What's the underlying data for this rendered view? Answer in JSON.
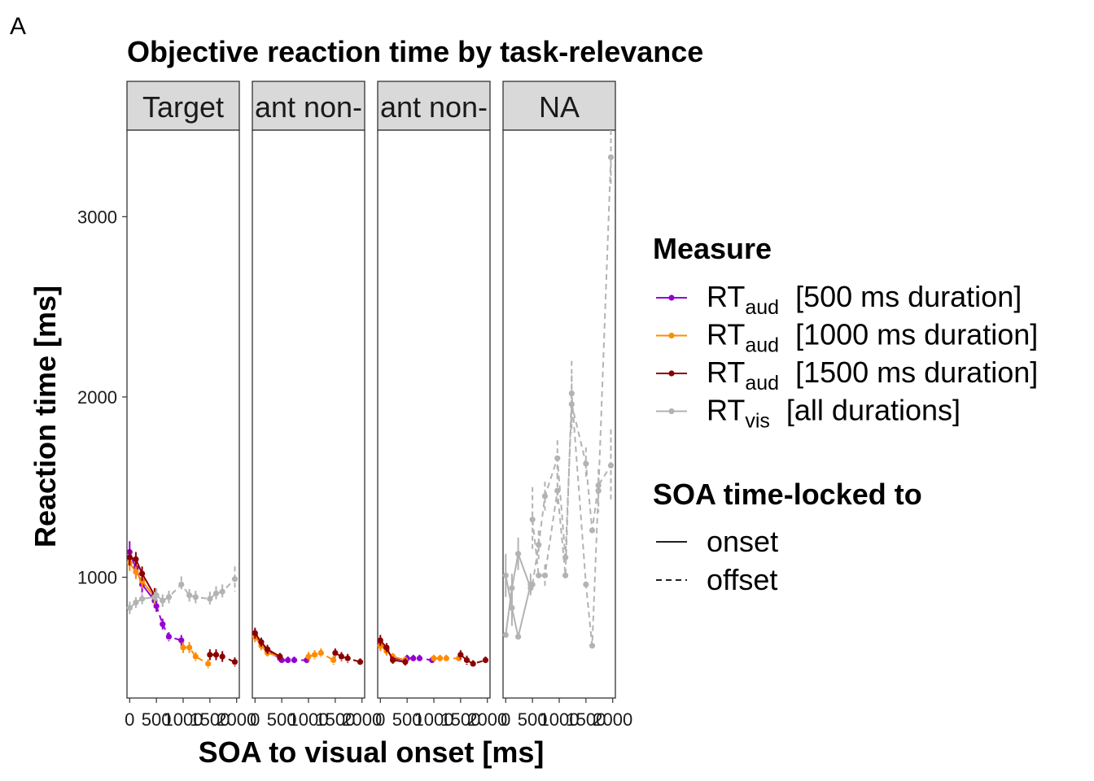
{
  "panel_letter": "A",
  "chart_data": {
    "type": "line",
    "title": "Objective reaction time by task-relevance",
    "xlabel": "SOA to visual onset [ms]",
    "ylabel": "Reaction time [ms]",
    "ylim": [
      330,
      3480
    ],
    "y_ticks": [
      "1000",
      "2000",
      "3000"
    ],
    "xlim": [
      -50,
      2050
    ],
    "x_tick_labels": [
      "0",
      "500",
      "1000",
      "1500",
      "2000"
    ],
    "facets": [
      "Target",
      "ant non-",
      "ant non-",
      "NA"
    ],
    "legend": {
      "placement": "right",
      "measure_title": "Measure",
      "measure_entries": [
        {
          "main": "RT",
          "sub": "aud",
          "rest": "[500 ms duration]",
          "color": "#9400d3"
        },
        {
          "main": "RT",
          "sub": "aud",
          "rest": "[1000 ms duration]",
          "color": "#ff8c00"
        },
        {
          "main": "RT",
          "sub": "aud",
          "rest": "[1500 ms duration]",
          "color": "#8b0000"
        },
        {
          "main": "RT",
          "sub": "vis",
          "rest": "[all durations]",
          "color": "#b3b3b3"
        }
      ],
      "lock_title": "SOA time-locked to",
      "lock_entries": [
        "onset",
        "offset"
      ]
    },
    "series": [
      {
        "panel": 0,
        "color": "#9400d3",
        "dash": false,
        "x": [
          0,
          116,
          233,
          466
        ],
        "y": [
          1140,
          1050,
          960,
          870
        ],
        "err": [
          60,
          50,
          45,
          40
        ]
      },
      {
        "panel": 0,
        "color": "#9400d3",
        "dash": true,
        "x": [
          500,
          616,
          733,
          966
        ],
        "y": [
          840,
          740,
          670,
          650
        ],
        "err": [
          40,
          30,
          25,
          30
        ]
      },
      {
        "panel": 0,
        "color": "#ff8c00",
        "dash": false,
        "x": [
          0,
          116,
          233,
          466
        ],
        "y": [
          1080,
          1030,
          980,
          890
        ],
        "err": [
          45,
          40,
          40,
          40
        ]
      },
      {
        "panel": 0,
        "color": "#ff8c00",
        "dash": true,
        "x": [
          1000,
          1116,
          1233,
          1466
        ],
        "y": [
          610,
          610,
          560,
          520
        ],
        "err": [
          30,
          30,
          25,
          25
        ]
      },
      {
        "panel": 0,
        "color": "#8b0000",
        "dash": false,
        "x": [
          0,
          116,
          233,
          466
        ],
        "y": [
          1110,
          1100,
          1020,
          900
        ],
        "err": [
          45,
          40,
          40,
          40
        ]
      },
      {
        "panel": 0,
        "color": "#8b0000",
        "dash": true,
        "x": [
          1500,
          1616,
          1733,
          1966
        ],
        "y": [
          570,
          570,
          560,
          530
        ],
        "err": [
          30,
          30,
          30,
          25
        ]
      },
      {
        "panel": 0,
        "color": "#b3b3b3",
        "dash": false,
        "x": [
          0,
          116,
          233,
          466
        ],
        "y": [
          830,
          860,
          880,
          890
        ],
        "err": [
          35,
          30,
          30,
          30
        ]
      },
      {
        "panel": 0,
        "color": "#b3b3b3",
        "dash": true,
        "x": [
          500,
          616,
          733,
          966,
          1116,
          1233,
          1500,
          1616,
          1733,
          1966
        ],
        "y": [
          900,
          870,
          890,
          960,
          900,
          890,
          880,
          910,
          920,
          990
        ],
        "err": [
          40,
          35,
          35,
          45,
          35,
          35,
          40,
          40,
          40,
          70
        ]
      },
      {
        "panel": 1,
        "color": "#9400d3",
        "dash": false,
        "x": [
          0,
          116,
          233,
          466
        ],
        "y": [
          680,
          640,
          590,
          550
        ],
        "err": [
          30,
          25,
          25,
          20
        ]
      },
      {
        "panel": 1,
        "color": "#9400d3",
        "dash": true,
        "x": [
          500,
          616,
          733,
          966
        ],
        "y": [
          540,
          540,
          540,
          540
        ],
        "err": [
          20,
          20,
          20,
          20
        ]
      },
      {
        "panel": 1,
        "color": "#ff8c00",
        "dash": false,
        "x": [
          0,
          116,
          233,
          466
        ],
        "y": [
          670,
          620,
          580,
          560
        ],
        "err": [
          30,
          25,
          20,
          20
        ]
      },
      {
        "panel": 1,
        "color": "#ff8c00",
        "dash": true,
        "x": [
          1000,
          1116,
          1233,
          1466
        ],
        "y": [
          560,
          570,
          580,
          540
        ],
        "err": [
          25,
          25,
          25,
          25
        ]
      },
      {
        "panel": 1,
        "color": "#8b0000",
        "dash": false,
        "x": [
          0,
          116,
          233,
          466
        ],
        "y": [
          690,
          640,
          600,
          560
        ],
        "err": [
          30,
          25,
          25,
          20
        ]
      },
      {
        "panel": 1,
        "color": "#8b0000",
        "dash": true,
        "x": [
          1500,
          1616,
          1733,
          1966
        ],
        "y": [
          580,
          560,
          550,
          530
        ],
        "err": [
          25,
          25,
          25,
          20
        ]
      },
      {
        "panel": 2,
        "color": "#9400d3",
        "dash": false,
        "x": [
          0,
          116,
          233,
          466
        ],
        "y": [
          630,
          600,
          550,
          540
        ],
        "err": [
          30,
          25,
          20,
          20
        ]
      },
      {
        "panel": 2,
        "color": "#9400d3",
        "dash": true,
        "x": [
          500,
          616,
          733,
          966
        ],
        "y": [
          550,
          550,
          550,
          540
        ],
        "err": [
          20,
          20,
          20,
          20
        ]
      },
      {
        "panel": 2,
        "color": "#ff8c00",
        "dash": false,
        "x": [
          0,
          116,
          233,
          466
        ],
        "y": [
          620,
          590,
          560,
          540
        ],
        "err": [
          30,
          25,
          20,
          20
        ]
      },
      {
        "panel": 2,
        "color": "#ff8c00",
        "dash": true,
        "x": [
          1000,
          1116,
          1233,
          1466
        ],
        "y": [
          550,
          550,
          550,
          550
        ],
        "err": [
          20,
          20,
          20,
          20
        ]
      },
      {
        "panel": 2,
        "color": "#8b0000",
        "dash": false,
        "x": [
          0,
          116,
          233,
          466
        ],
        "y": [
          650,
          610,
          540,
          530
        ],
        "err": [
          30,
          25,
          20,
          20
        ]
      },
      {
        "panel": 2,
        "color": "#8b0000",
        "dash": true,
        "x": [
          1500,
          1616,
          1733,
          1966
        ],
        "y": [
          570,
          540,
          520,
          540
        ],
        "err": [
          25,
          25,
          20,
          20
        ]
      },
      {
        "panel": 3,
        "color": "#b3b3b3",
        "dash": false,
        "x": [
          0,
          116,
          233,
          466
        ],
        "y": [
          1010,
          830,
          670,
          960
        ],
        "err": [
          120,
          100,
          0,
          60
        ]
      },
      {
        "panel": 3,
        "color": "#b3b3b3",
        "dash": false,
        "x": [
          0,
          116,
          233,
          466
        ],
        "y": [
          680,
          940,
          1130,
          940
        ],
        "err": [
          0,
          80,
          90,
          0
        ]
      },
      {
        "panel": 3,
        "color": "#b3b3b3",
        "dash": true,
        "x": [
          500,
          616,
          733,
          966,
          1116,
          1233,
          1500,
          1616,
          1733,
          1966
        ],
        "y": [
          1320,
          1010,
          1010,
          1480,
          1010,
          2020,
          960,
          620,
          1480,
          3330
        ],
        "err": [
          180,
          0,
          60,
          90,
          0,
          180,
          0,
          0,
          120,
          150
        ]
      },
      {
        "panel": 3,
        "color": "#b3b3b3",
        "dash": true,
        "x": [
          500,
          616,
          733,
          966,
          1116,
          1233,
          1500,
          1616,
          1733,
          1966
        ],
        "y": [
          960,
          1180,
          1450,
          1660,
          1110,
          1960,
          1630,
          1260,
          1510,
          1620
        ],
        "err": [
          0,
          80,
          80,
          100,
          0,
          160,
          90,
          0,
          0,
          200
        ]
      }
    ]
  }
}
